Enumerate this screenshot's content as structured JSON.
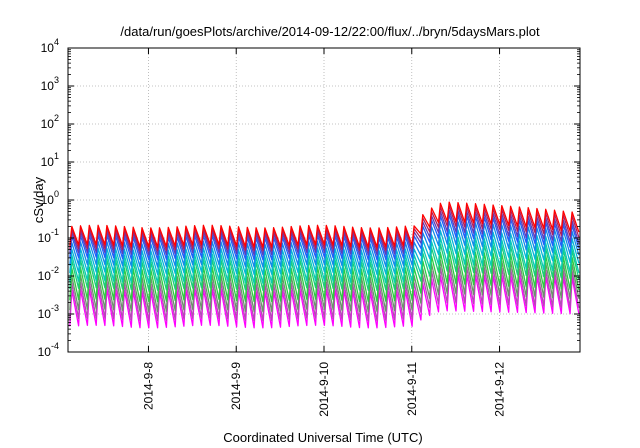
{
  "chart_data": {
    "type": "line",
    "title": "/data/run/goesPlots/archive/2014-09-12/22:00/flux/../bryn/5daysMars.plot",
    "xlabel": "Coordinated Universal Time (UTC)",
    "ylabel": "cSv/day",
    "yscale": "log",
    "ylim": [
      0.0001,
      10000
    ],
    "y_ticks": [
      {
        "base": "10",
        "exp": "-4"
      },
      {
        "base": "10",
        "exp": "-3"
      },
      {
        "base": "10",
        "exp": "-2"
      },
      {
        "base": "10",
        "exp": "-1"
      },
      {
        "base": "10",
        "exp": "0"
      },
      {
        "base": "10",
        "exp": "1"
      },
      {
        "base": "10",
        "exp": "2"
      },
      {
        "base": "10",
        "exp": "3"
      },
      {
        "base": "10",
        "exp": "4"
      }
    ],
    "xlim": [
      "2014-09-07 02:00",
      "2014-09-12 22:00"
    ],
    "x_ticks": [
      "2014-9-8",
      "2014-9-9",
      "2014-9-10",
      "2014-9-11",
      "2014-9-12"
    ],
    "grid": true,
    "legend": "none",
    "event_start": "2014-09-11 00:00",
    "colors": [
      "#ff0000",
      "#2255ff",
      "#00cccc",
      "#33cc33",
      "#ff00ff"
    ],
    "series": [
      {
        "peak_quiet": 0.2,
        "ratio": 3.2,
        "peak_event": 0.9,
        "peak_event_end": 0.45
      },
      {
        "peak_quiet": 0.17,
        "ratio": 3.4,
        "peak_event": 0.72,
        "peak_event_end": 0.35
      },
      {
        "peak_quiet": 0.14,
        "ratio": 3.6,
        "peak_event": 0.55,
        "peak_event_end": 0.26
      },
      {
        "peak_quiet": 0.11,
        "ratio": 3.8,
        "peak_event": 0.42,
        "peak_event_end": 0.2
      },
      {
        "peak_quiet": 0.075,
        "ratio": 4.0,
        "peak_event": 0.28,
        "peak_event_end": 0.14
      },
      {
        "peak_quiet": 0.05,
        "ratio": 4.2,
        "peak_event": 0.17,
        "peak_event_end": 0.09
      },
      {
        "peak_quiet": 0.035,
        "ratio": 5.0,
        "peak_event": 0.11,
        "peak_event_end": 0.06
      },
      {
        "peak_quiet": 0.025,
        "ratio": 5.5,
        "peak_event": 0.075,
        "peak_event_end": 0.045
      },
      {
        "peak_quiet": 0.016,
        "ratio": 7.0,
        "peak_event": 0.045,
        "peak_event_end": 0.03
      },
      {
        "peak_quiet": 0.01,
        "ratio": 8.0,
        "peak_event": 0.028,
        "peak_event_end": 0.02
      },
      {
        "peak_quiet": 0.0065,
        "ratio": 9.0,
        "peak_event": 0.018,
        "peak_event_end": 0.013
      },
      {
        "peak_quiet": 0.0042,
        "ratio": 9.0,
        "peak_event": 0.011,
        "peak_event_end": 0.009
      }
    ]
  }
}
